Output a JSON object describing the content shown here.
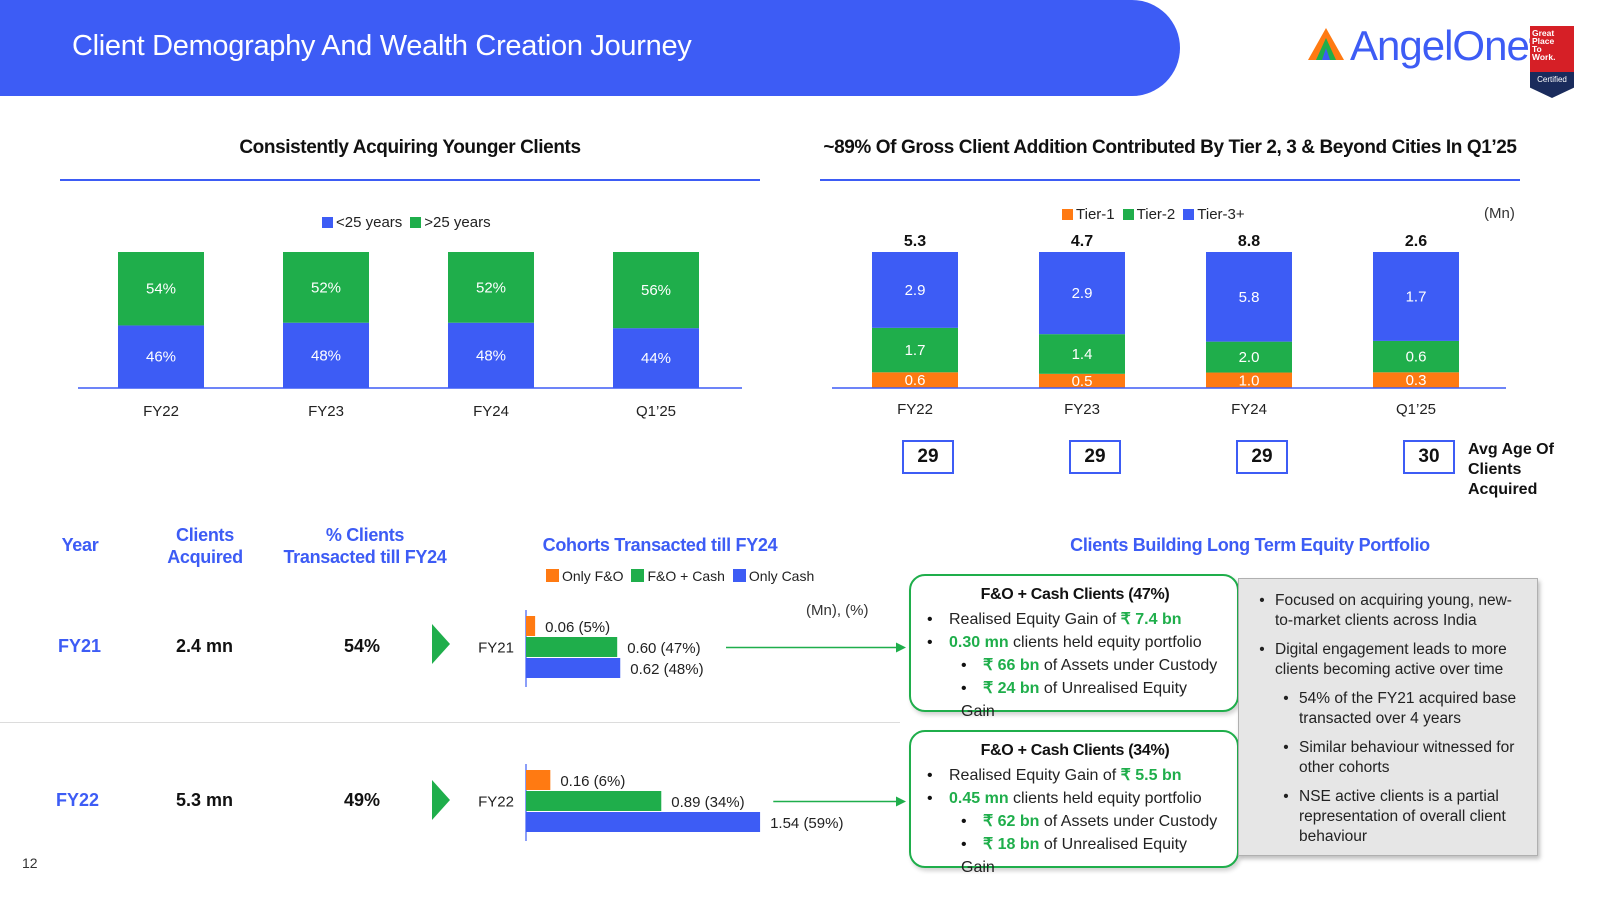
{
  "header": {
    "title": "Client Demography And Wealth Creation Journey",
    "logo_text": "AngelOne",
    "logo_registered": "®",
    "badge_lines": [
      "Great",
      "Place",
      "To",
      "Work."
    ],
    "badge_certified": "Certified"
  },
  "colors": {
    "blue": "#3d5cf5",
    "green": "#1fae4b",
    "orange": "#ff7a12"
  },
  "left_chart_title": "Consistently Acquiring Younger Clients",
  "right_chart_title": "~89% Of Gross Client Addition Contributed By Tier 2, 3 & Beyond Cities In Q1’25",
  "chart_data": [
    {
      "type": "bar",
      "stacked": true,
      "title": "Consistently Acquiring Younger Clients",
      "categories": [
        "FY22",
        "FY23",
        "FY24",
        "Q1’25"
      ],
      "series": [
        {
          "name": "<25 years",
          "color": "#3d5cf5",
          "values": [
            46,
            48,
            48,
            44
          ],
          "labels": [
            "46%",
            "48%",
            "48%",
            "44%"
          ]
        },
        {
          "name": ">25 years",
          "color": "#1fae4b",
          "values": [
            54,
            52,
            52,
            56
          ],
          "labels": [
            "54%",
            "52%",
            "52%",
            "56%"
          ]
        }
      ],
      "ylim": [
        0,
        100
      ],
      "legend": "top-center"
    },
    {
      "type": "bar",
      "stacked": true,
      "title": "~89% Of Gross Client Addition Contributed By Tier 2, 3 & Beyond Cities In Q1’25",
      "unit": "(Mn)",
      "categories": [
        "FY22",
        "FY23",
        "FY24",
        "Q1’25"
      ],
      "series": [
        {
          "name": "Tier-1",
          "color": "#ff7a12",
          "values": [
            0.6,
            0.5,
            1.0,
            0.3
          ],
          "labels": [
            "0.6",
            "0.5",
            "1.0",
            "0.3"
          ]
        },
        {
          "name": "Tier-2",
          "color": "#1fae4b",
          "values": [
            1.7,
            1.4,
            2.0,
            0.6
          ],
          "labels": [
            "1.7",
            "1.4",
            "2.0",
            "0.6"
          ]
        },
        {
          "name": "Tier-3+",
          "color": "#3d5cf5",
          "values": [
            2.9,
            2.9,
            5.8,
            1.7
          ],
          "labels": [
            "2.9",
            "2.9",
            "5.8",
            "1.7"
          ]
        }
      ],
      "totals": [
        "5.3",
        "4.7",
        "8.8",
        "2.6"
      ],
      "avg_age": [
        "29",
        "29",
        "29",
        "30"
      ],
      "avg_age_label": "Avg Age Of Clients Acquired",
      "legend": "top-center"
    },
    {
      "type": "bar",
      "orientation": "horizontal",
      "title": "Cohorts Transacted till FY24",
      "unit": "(Mn), (%)",
      "legend_items": [
        {
          "name": "Only F&O",
          "color": "#ff7a12"
        },
        {
          "name": "F&O + Cash",
          "color": "#1fae4b"
        },
        {
          "name": "Only Cash",
          "color": "#3d5cf5"
        }
      ],
      "cohorts": [
        {
          "name": "FY21",
          "values": [
            0.06,
            0.6,
            0.62
          ],
          "labels": [
            "0.06 (5%)",
            "0.60 (47%)",
            "0.62 (48%)"
          ]
        },
        {
          "name": "FY22",
          "values": [
            0.16,
            0.89,
            1.54
          ],
          "labels": [
            "0.16 (6%)",
            "0.89 (34%)",
            "1.54 (59%)"
          ]
        }
      ]
    }
  ],
  "table": {
    "headers": {
      "year": "Year",
      "clients_line1": "Clients",
      "clients_line2": "Acquired",
      "pct_line1": "% Clients",
      "pct_line2": "Transacted till FY24"
    },
    "rows": [
      {
        "year": "FY21",
        "clients": "2.4 mn",
        "pct": "54%"
      },
      {
        "year": "FY22",
        "clients": "5.3 mn",
        "pct": "49%"
      }
    ]
  },
  "portfolio_title": "Clients Building Long Term Equity Portfolio",
  "cards": [
    {
      "title": "F&O + Cash Clients (47%)",
      "gain_text": "Realised Equity Gain of ",
      "gain_value": "₹ 7.4 bn",
      "held_value": "0.30 mn",
      "held_text": " clients held equity portfolio",
      "auc_value": "₹ 66 bn",
      "auc_text": " of Assets under Custody",
      "unreal_value": "₹ 24 bn",
      "unreal_text": " of Unrealised Equity Gain"
    },
    {
      "title": "F&O + Cash Clients (34%)",
      "gain_text": "Realised Equity Gain of ",
      "gain_value": "₹ 5.5 bn",
      "held_value": "0.45 mn",
      "held_text": " clients held equity portfolio",
      "auc_value": "₹ 62 bn",
      "auc_text": " of Assets under Custody",
      "unreal_value": "₹ 18 bn",
      "unreal_text": " of Unrealised Equity Gain"
    }
  ],
  "notes": [
    "Focused on acquiring young, new-to-market clients across India",
    "Digital engagement leads to more clients becoming active over time",
    "54% of the FY21 acquired base transacted over 4 years",
    "Similar behaviour witnessed for other cohorts",
    "NSE active clients is a partial representation of overall client behaviour"
  ],
  "page_number": "12"
}
